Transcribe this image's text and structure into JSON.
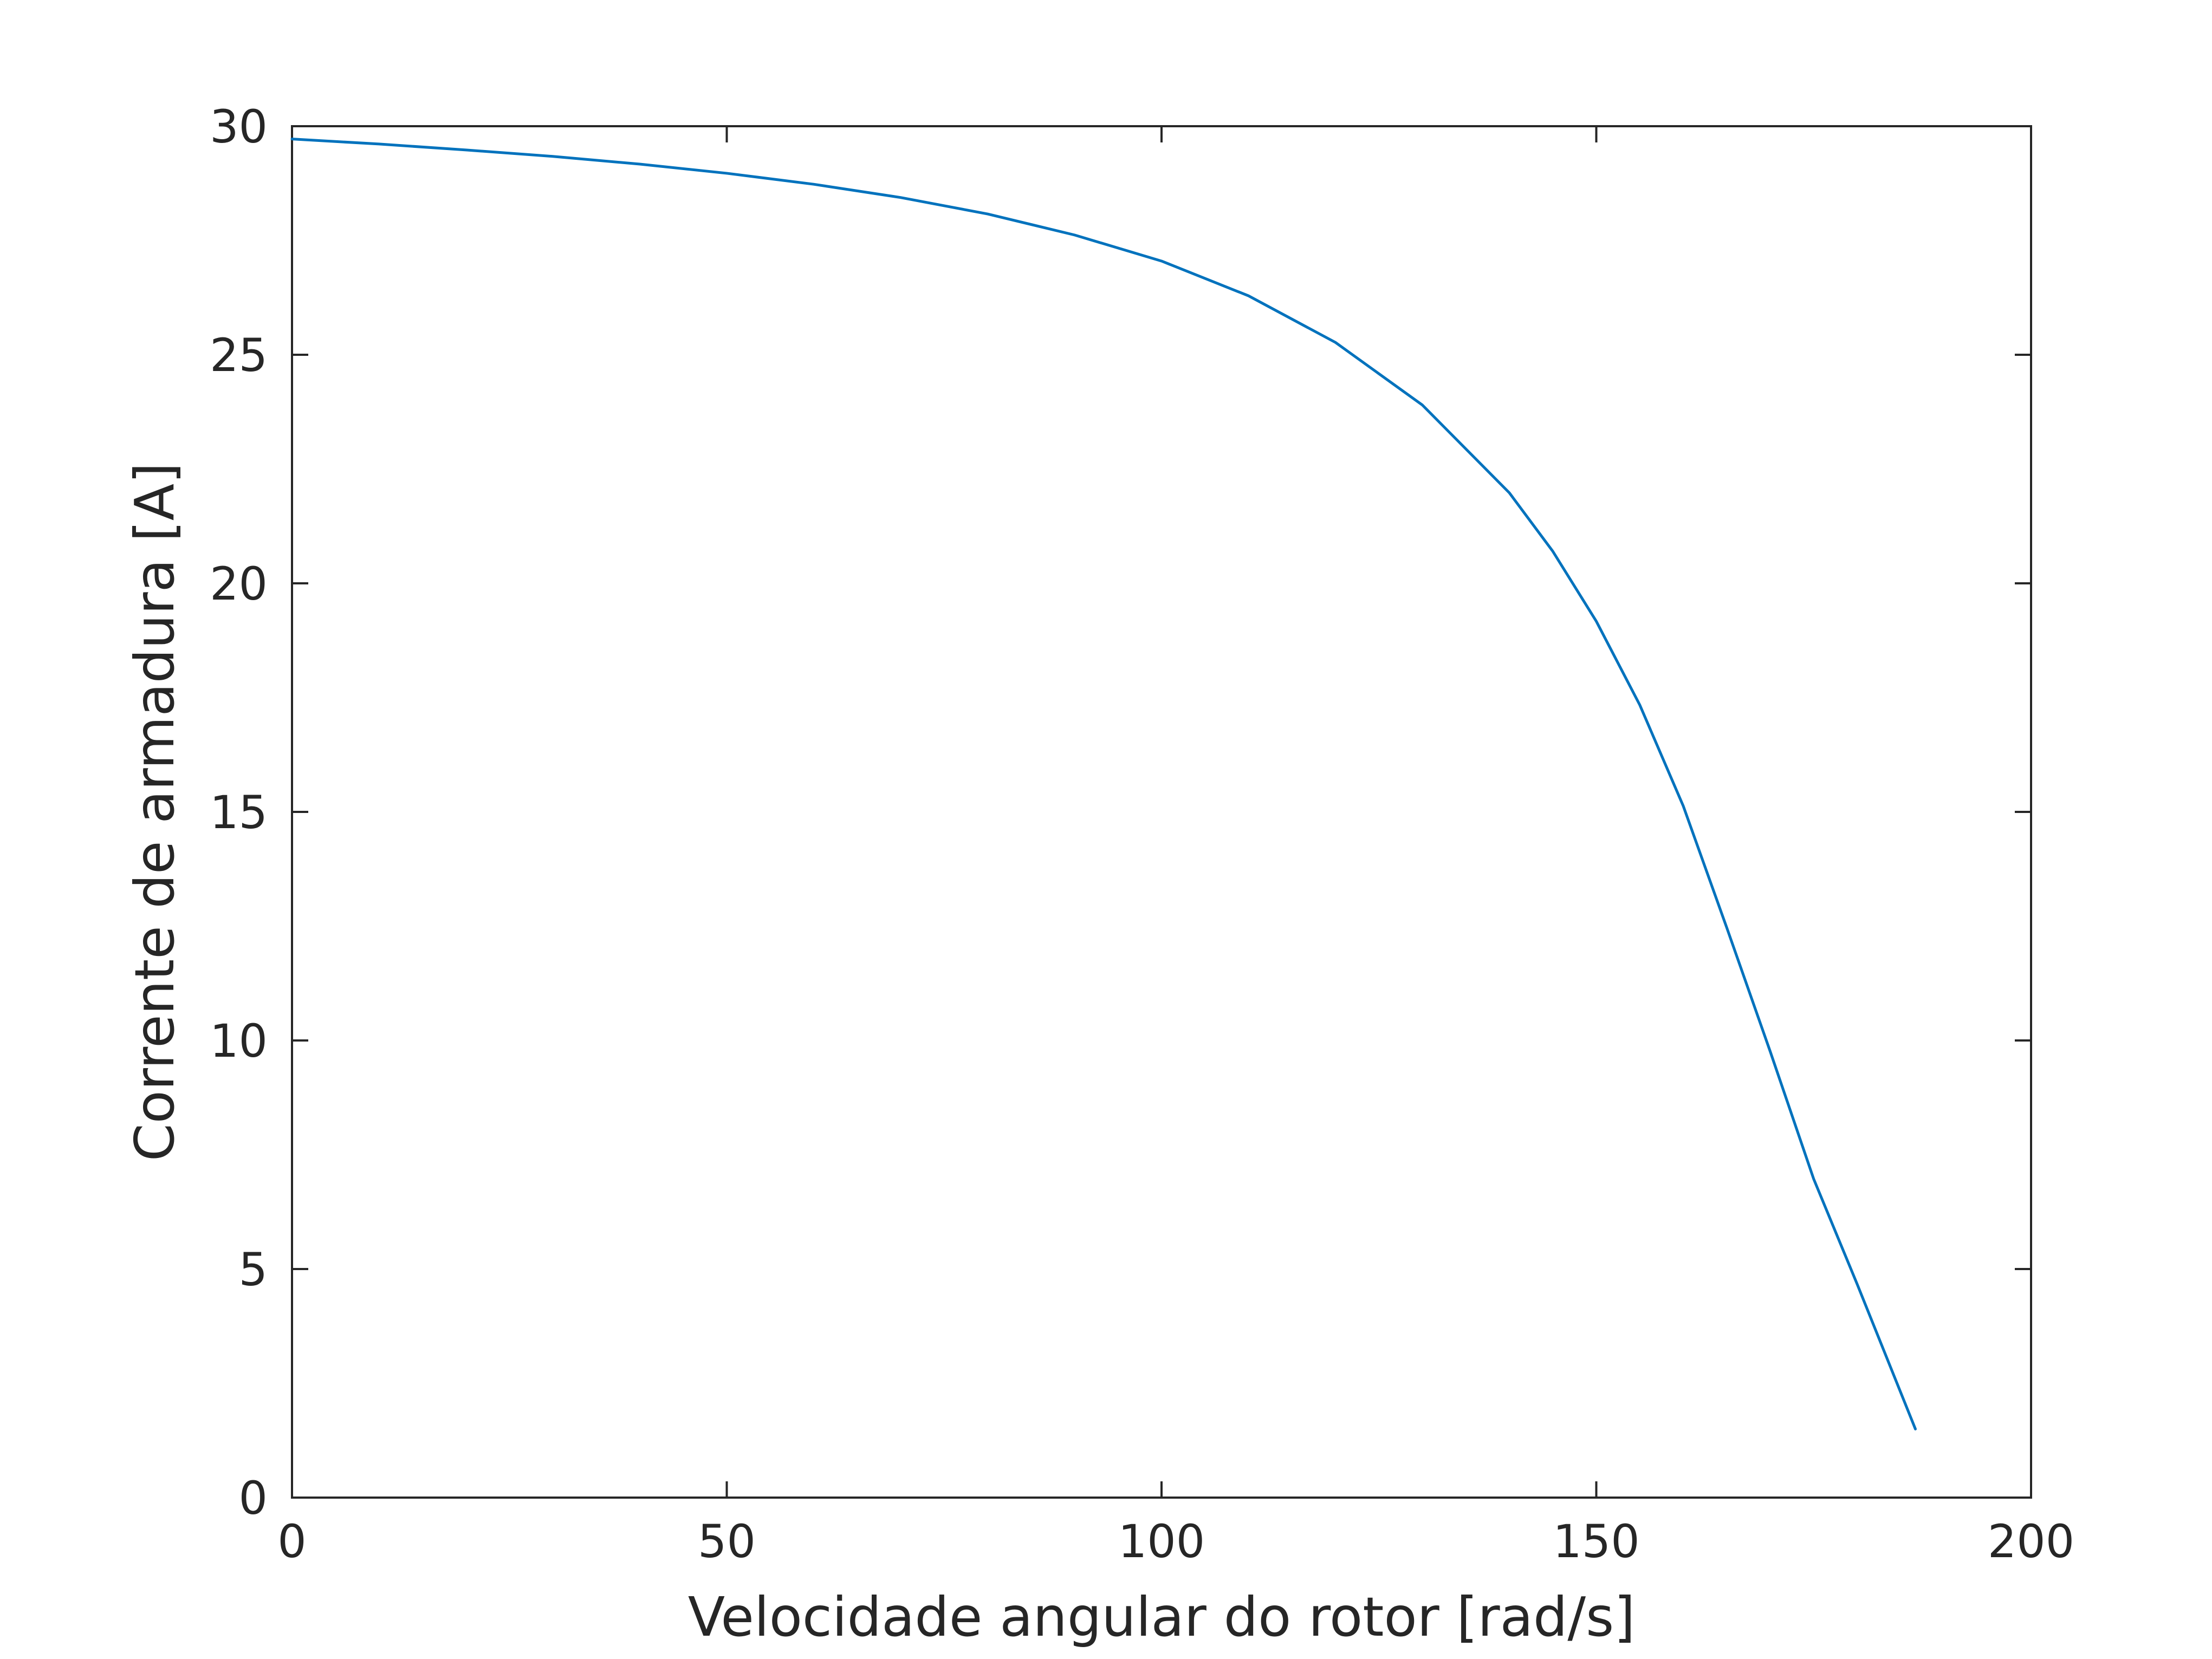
{
  "chart_data": {
    "type": "line",
    "title": "",
    "xlabel": "Velocidade angular do rotor [rad/s]",
    "ylabel": "Corrente de armadura [A]",
    "xlim": [
      0,
      200
    ],
    "ylim": [
      0,
      30
    ],
    "x_ticks": [
      "0",
      "50",
      "100",
      "150",
      "200"
    ],
    "y_ticks": [
      "0",
      "5",
      "10",
      "15",
      "20",
      "25",
      "30"
    ],
    "grid": false,
    "legend": "none",
    "colors": {
      "line": "#0072BD",
      "axis": "#262626",
      "background": "#ffffff"
    },
    "series": [
      {
        "x": [
          0,
          10,
          20,
          30,
          40,
          50,
          60,
          70,
          80,
          90,
          100,
          110,
          120,
          130,
          140,
          145,
          150,
          155,
          160,
          165,
          170,
          175,
          180,
          186.7
        ],
        "values": [
          29.72,
          29.61,
          29.48,
          29.34,
          29.17,
          28.97,
          28.73,
          28.44,
          28.08,
          27.62,
          27.05,
          26.29,
          25.27,
          23.9,
          21.98,
          20.7,
          19.17,
          17.34,
          15.13,
          12.47,
          9.76,
          6.97,
          4.67,
          1.5
        ]
      }
    ]
  }
}
